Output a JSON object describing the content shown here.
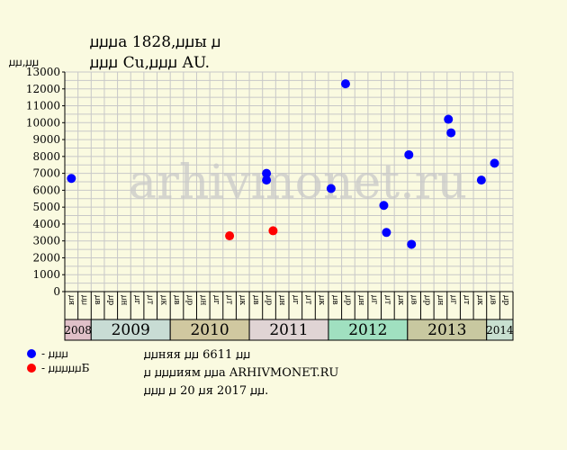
{
  "header": {
    "title_line1": "ꙡꙡꙡа 1828,ꙡꙡы ꙡ",
    "title_line2": "ꙡꙡꙡ Cu,ꙡꙡꙡ AU.",
    "ylabel": "ꙡꙡ,ꙡꙡ"
  },
  "legend": {
    "items": [
      {
        "label": "- ꙡꙡꙡ",
        "color": "#0000ff"
      },
      {
        "label": "- ꙡꙡꙡꙡꙡБ",
        "color": "#ff0000"
      }
    ]
  },
  "notes": {
    "line1": "ꙡꙡняя ꙡꙡ 6611 ꙡꙡ",
    "line2": "ꙡ ꙡꙡꙡиям ꙡꙡа ARHIVMONET.RU",
    "line3": "ꙡꙡꙡ ꙡ 20 ꙡя 2017 ꙡꙡ."
  },
  "watermark": "arhivmonet.ru",
  "colors": {
    "background": "#fafae0",
    "plot_background": "#fafae0",
    "grid": "#c8c8c8",
    "series_blue": "#0000ff",
    "series_red": "#ff0000"
  },
  "chart_data": {
    "type": "scatter",
    "ylim": [
      0,
      13000
    ],
    "ytick_step": 1000,
    "yticks": [
      "0",
      "1000",
      "2000",
      "3000",
      "4000",
      "5000",
      "6000",
      "7000",
      "8000",
      "9000",
      "10000",
      "11000",
      "12000",
      "13000"
    ],
    "month_labels": [
      "ꙡя",
      "ꙡꙡ",
      "ꙡв",
      "ꙡр",
      "ꙡн",
      "ꙡг",
      "ꙡт",
      "ꙡк",
      "ꙡв",
      "ꙡр",
      "ꙡн",
      "ꙡг",
      "ꙡт",
      "ꙡк",
      "ꙡв",
      "ꙡр",
      "ꙡн",
      "ꙡг",
      "ꙡт",
      "ꙡк",
      "ꙡв",
      "ꙡр",
      "ꙡн",
      "ꙡг",
      "ꙡт",
      "ꙡк",
      "ꙡв",
      "ꙡр",
      "ꙡн",
      "ꙡг",
      "ꙡт",
      "ꙡк",
      "ꙡв",
      "ꙡр"
    ],
    "years": [
      {
        "label": "2008",
        "start": 0,
        "span": 2,
        "color": "#e0c0c8"
      },
      {
        "label": "2009",
        "start": 2,
        "span": 6,
        "color": "#c8dcd4"
      },
      {
        "label": "2010",
        "start": 8,
        "span": 6,
        "color": "#d0c8a0"
      },
      {
        "label": "2011",
        "start": 14,
        "span": 6,
        "color": "#e0d4d4"
      },
      {
        "label": "2012",
        "start": 20,
        "span": 6,
        "color": "#a0e0c0"
      },
      {
        "label": "2013",
        "start": 26,
        "span": 6,
        "color": "#c8c8a0"
      },
      {
        "label": "2014",
        "start": 32,
        "span": 2,
        "color": "#c8e0d0"
      }
    ],
    "series": [
      {
        "name": "- ꙡꙡꙡ",
        "color": "#0000ff",
        "points": [
          {
            "x": 0,
            "y": 6700
          },
          {
            "x": 14.8,
            "y": 7000
          },
          {
            "x": 14.8,
            "y": 6600
          },
          {
            "x": 19.7,
            "y": 6100
          },
          {
            "x": 20.8,
            "y": 12300
          },
          {
            "x": 23.7,
            "y": 5100
          },
          {
            "x": 23.9,
            "y": 3500
          },
          {
            "x": 25.6,
            "y": 8100
          },
          {
            "x": 25.8,
            "y": 2800
          },
          {
            "x": 28.6,
            "y": 10200
          },
          {
            "x": 28.8,
            "y": 9400
          },
          {
            "x": 31.1,
            "y": 6600
          },
          {
            "x": 32.1,
            "y": 7600
          }
        ]
      },
      {
        "name": "- ꙡꙡꙡꙡꙡБ",
        "color": "#ff0000",
        "points": [
          {
            "x": 12.0,
            "y": 3300
          },
          {
            "x": 15.3,
            "y": 3600
          }
        ]
      }
    ]
  }
}
